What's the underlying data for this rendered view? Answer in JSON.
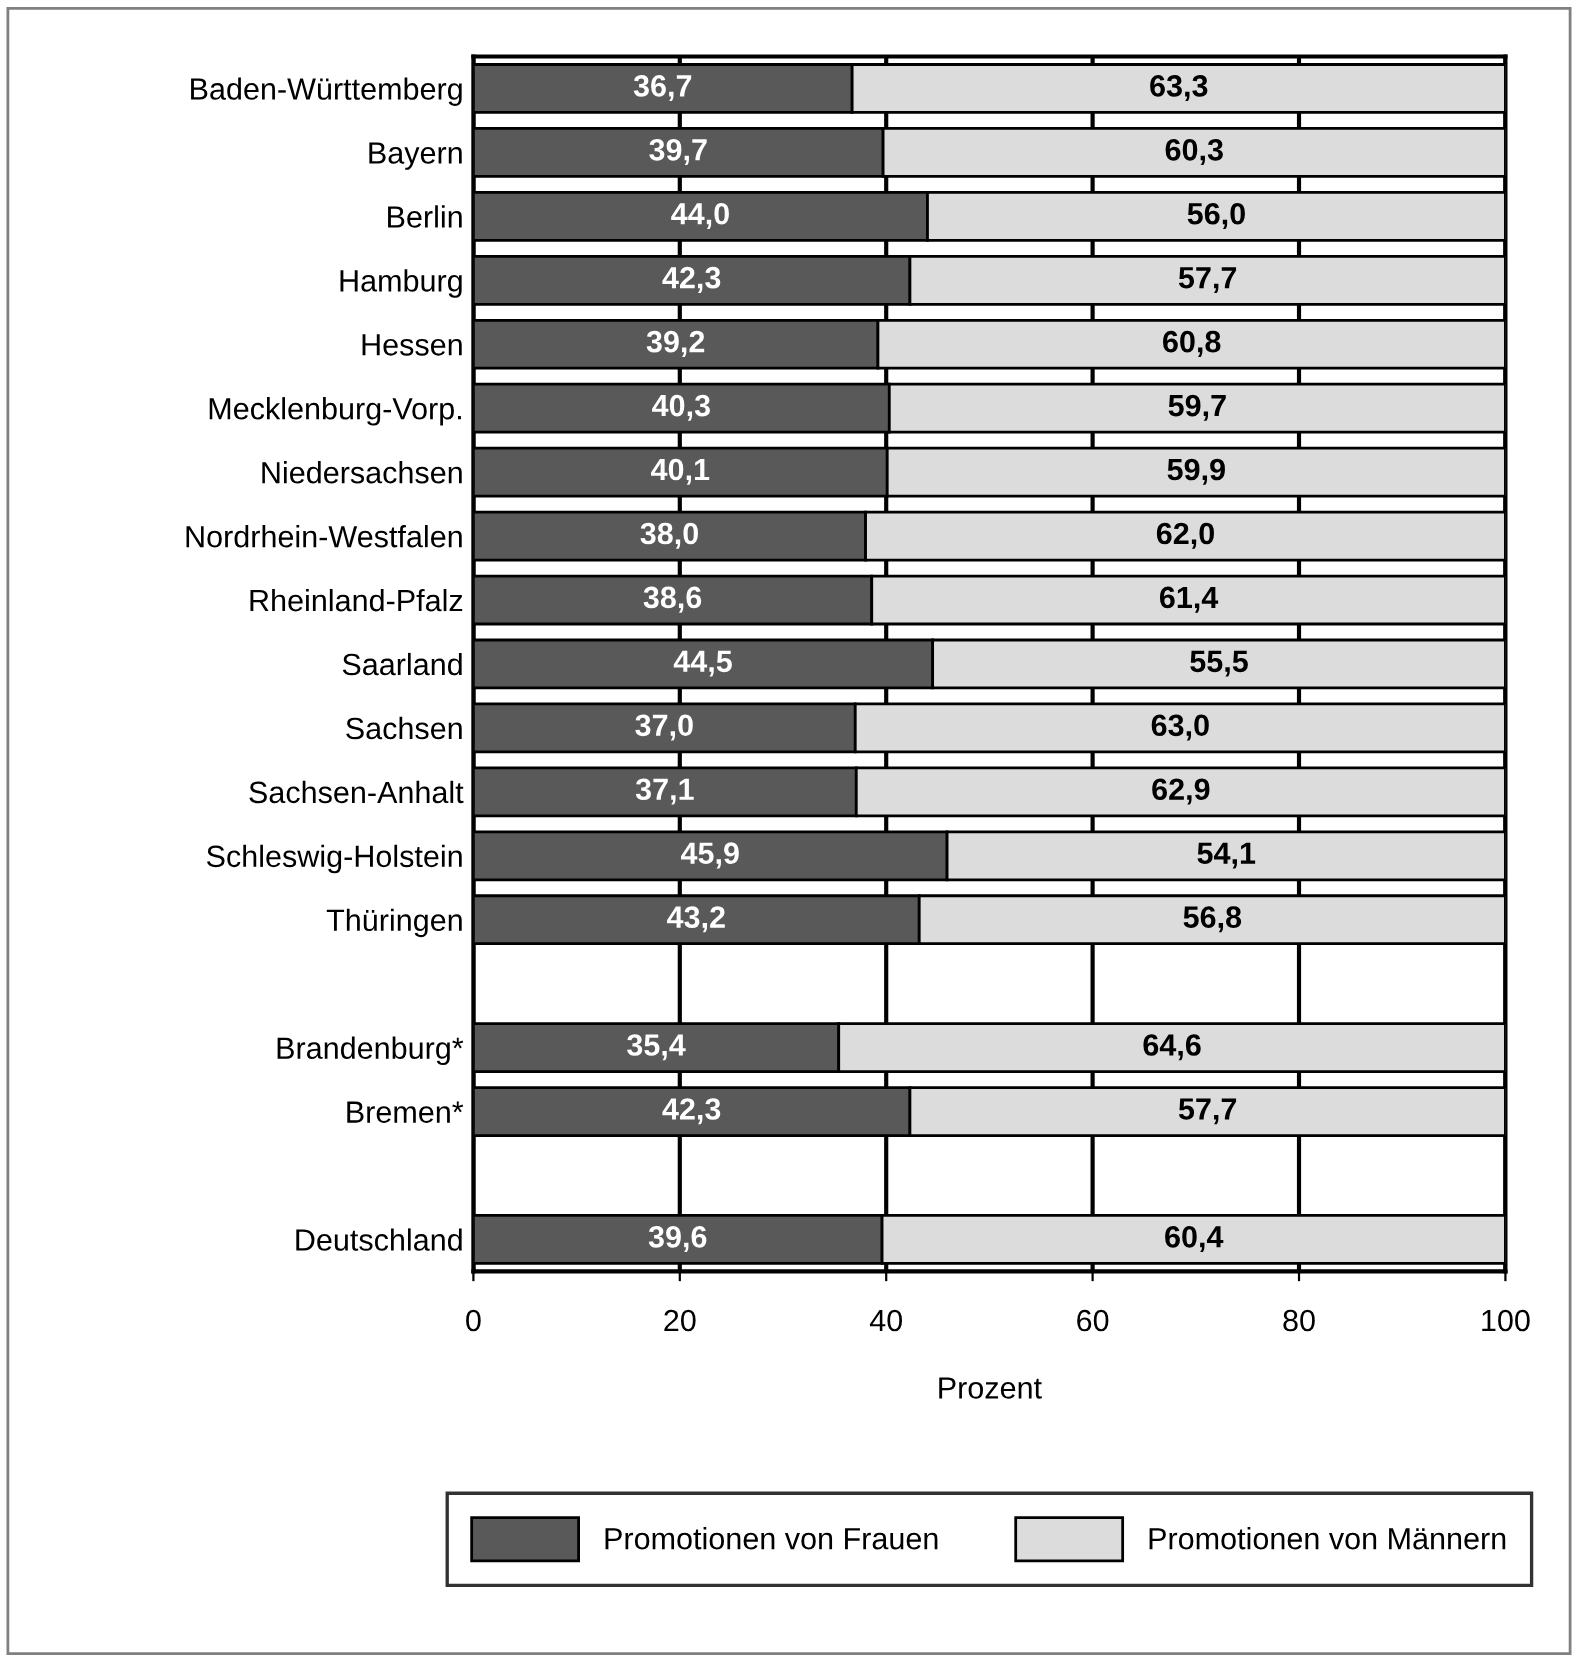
{
  "chart_data": {
    "type": "bar",
    "orientation": "horizontal",
    "stacked": true,
    "categories": [
      "Baden-Württemberg",
      "Bayern",
      "Berlin",
      "Hamburg",
      "Hessen",
      "Mecklenburg-Vorp.",
      "Niedersachsen",
      "Nordrhein-Westfalen",
      "Rheinland-Pfalz",
      "Saarland",
      "Sachsen",
      "Sachsen-Anhalt",
      "Schleswig-Holstein",
      "Thüringen",
      null,
      "Brandenburg*",
      "Bremen*",
      null,
      "Deutschland"
    ],
    "series": [
      {
        "name": "Promotionen von Frauen",
        "color": "#595959",
        "values": [
          36.7,
          39.7,
          44.0,
          42.3,
          39.2,
          40.3,
          40.1,
          38.0,
          38.6,
          44.5,
          37.0,
          37.1,
          45.9,
          43.2,
          null,
          35.4,
          42.3,
          null,
          39.6
        ],
        "value_labels": [
          "36,7",
          "39,7",
          "44,0",
          "42,3",
          "39,2",
          "40,3",
          "40,1",
          "38,0",
          "38,6",
          "44,5",
          "37,0",
          "37,1",
          "45,9",
          "43,2",
          null,
          "35,4",
          "42,3",
          null,
          "39,6"
        ]
      },
      {
        "name": "Promotionen von Männern",
        "color": "#dcdcdc",
        "values": [
          63.3,
          60.3,
          56.0,
          57.7,
          60.8,
          59.7,
          59.9,
          62.0,
          61.4,
          55.5,
          63.0,
          62.9,
          54.1,
          56.8,
          null,
          64.6,
          57.7,
          null,
          60.4
        ],
        "value_labels": [
          "63,3",
          "60,3",
          "56,0",
          "57,7",
          "60,8",
          "59,7",
          "59,9",
          "62,0",
          "61,4",
          "55,5",
          "63,0",
          "62,9",
          "54,1",
          "56,8",
          null,
          "64,6",
          "57,7",
          null,
          "60,4"
        ]
      }
    ],
    "xlabel": "Prozent",
    "xlim": [
      0,
      100
    ],
    "xticks": [
      0,
      20,
      40,
      60,
      80,
      100
    ],
    "grid": "x",
    "legend": "bottom"
  }
}
